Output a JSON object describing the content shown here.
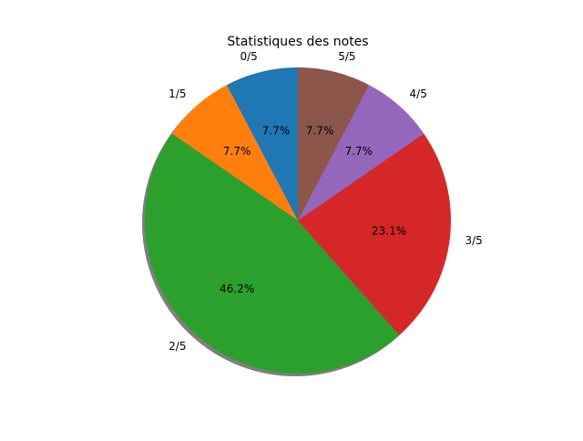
{
  "chart_data": {
    "type": "pie",
    "title": "Statistiques des notes",
    "categories": [
      "0/5",
      "1/5",
      "2/5",
      "3/5",
      "4/5",
      "5/5"
    ],
    "values": [
      1,
      1,
      6,
      3,
      1,
      1
    ],
    "percent_labels": [
      "7.7%",
      "7.7%",
      "46.2%",
      "23.1%",
      "7.7%",
      "7.7%"
    ],
    "colors": [
      "#1f77b4",
      "#ff7f0e",
      "#2ca02c",
      "#d62728",
      "#9467bd",
      "#8c564b"
    ],
    "start_angle_deg": 90,
    "direction": "counterclockwise",
    "shadow": true,
    "legend": "none"
  }
}
